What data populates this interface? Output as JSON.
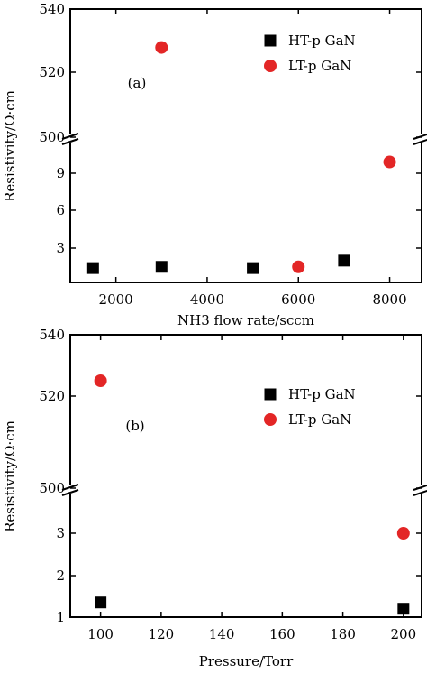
{
  "chart_data": [
    {
      "type": "scatter",
      "panel_label": "(a)",
      "xlabel": "NH3 flow rate/sccm",
      "ylabel": "Resistivity/Ω·cm",
      "xlim": [
        1000,
        8700
      ],
      "xticks": [
        2000,
        4000,
        6000,
        8000
      ],
      "xtick_labels": [
        "2000",
        "4000",
        "6000",
        "8000"
      ],
      "broken_y_axis": true,
      "y_upper_ticks": [
        "540",
        "520",
        "500"
      ],
      "y_lower_ticks": [
        "9",
        "6",
        "3"
      ],
      "upper_ylim": [
        500,
        540
      ],
      "lower_ylim": [
        0,
        11.3
      ],
      "legend_position": "top-right",
      "series": [
        {
          "name": "HT-p GaN",
          "marker": "square",
          "color": "#000000",
          "points": [
            [
              1500,
              1.4
            ],
            [
              3000,
              1.5
            ],
            [
              5000,
              1.4
            ],
            [
              7000,
              2.0
            ]
          ]
        },
        {
          "name": "LT-p GaN",
          "marker": "circle",
          "color": "#e32626",
          "points": [
            [
              3000,
              528
            ],
            [
              6000,
              1.5
            ],
            [
              8000,
              9.9
            ]
          ]
        }
      ]
    },
    {
      "type": "scatter",
      "panel_label": "(b)",
      "xlabel": "Pressure/Torr",
      "ylabel": "Resistivity/Ω·cm",
      "xlim": [
        90,
        206
      ],
      "xticks": [
        100,
        120,
        140,
        160,
        180,
        200
      ],
      "xtick_labels": [
        "100",
        "120",
        "140",
        "160",
        "180",
        "200"
      ],
      "broken_y_axis": true,
      "y_upper_ticks": [
        "540",
        "520",
        "500"
      ],
      "y_lower_ticks": [
        "3",
        "2",
        "1"
      ],
      "upper_ylim": [
        500,
        540
      ],
      "lower_ylim": [
        1,
        4.2
      ],
      "legend_position": "top-right",
      "series": [
        {
          "name": "HT-p GaN",
          "marker": "square",
          "color": "#000000",
          "points": [
            [
              100,
              1.35
            ],
            [
              200,
              1.2
            ]
          ]
        },
        {
          "name": "LT-p GaN",
          "marker": "circle",
          "color": "#e32626",
          "points": [
            [
              100,
              528
            ],
            [
              200,
              3.0
            ]
          ]
        }
      ]
    }
  ]
}
